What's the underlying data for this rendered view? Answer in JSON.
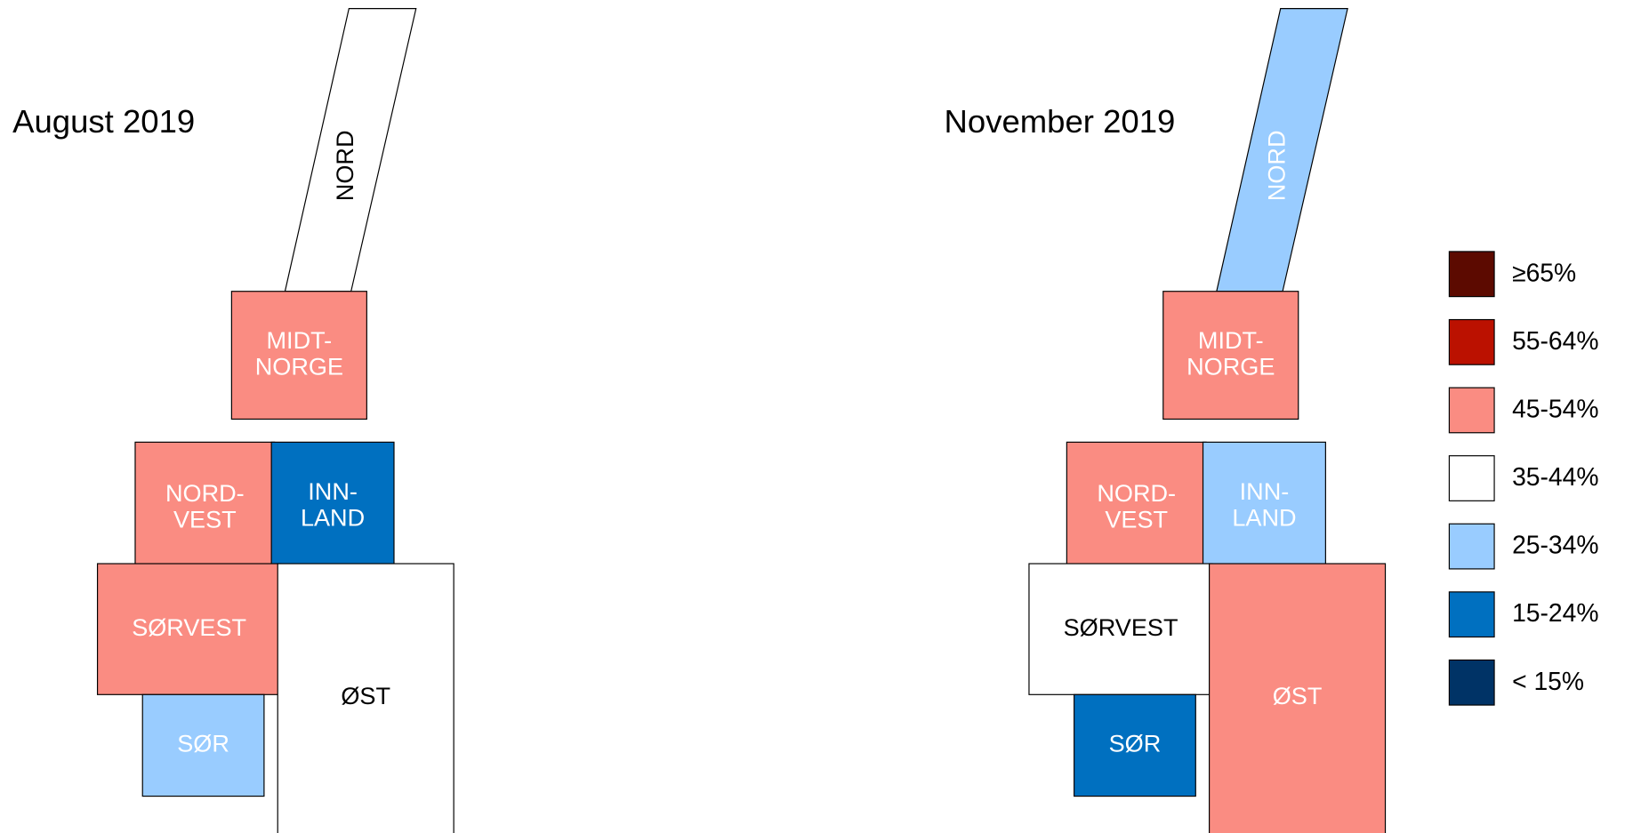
{
  "maps": [
    {
      "title": "August 2019",
      "regions": [
        {
          "lines": [
            "NORD"
          ],
          "color": "#ffffff",
          "text_color": "#000000"
        },
        {
          "lines": [
            "MIDT-",
            "NORGE"
          ],
          "color": "#fa8c82",
          "text_color": "#ffffff"
        },
        {
          "lines": [
            "NORD-",
            "VEST"
          ],
          "color": "#fa8c82",
          "text_color": "#ffffff"
        },
        {
          "lines": [
            "INN-",
            "LAND"
          ],
          "color": "#0070c0",
          "text_color": "#ffffff"
        },
        {
          "lines": [
            "SØRVEST"
          ],
          "color": "#fa8c82",
          "text_color": "#ffffff"
        },
        {
          "lines": [
            "ØST"
          ],
          "color": "#ffffff",
          "text_color": "#000000"
        },
        {
          "lines": [
            "SØR"
          ],
          "color": "#99ccff",
          "text_color": "#ffffff"
        }
      ]
    },
    {
      "title": "November 2019",
      "regions": [
        {
          "lines": [
            "NORD"
          ],
          "color": "#99ccff",
          "text_color": "#ffffff"
        },
        {
          "lines": [
            "MIDT-",
            "NORGE"
          ],
          "color": "#fa8c82",
          "text_color": "#ffffff"
        },
        {
          "lines": [
            "NORD-",
            "VEST"
          ],
          "color": "#fa8c82",
          "text_color": "#ffffff"
        },
        {
          "lines": [
            "INN-",
            "LAND"
          ],
          "color": "#99ccff",
          "text_color": "#ffffff"
        },
        {
          "lines": [
            "SØRVEST"
          ],
          "color": "#ffffff",
          "text_color": "#000000"
        },
        {
          "lines": [
            "ØST"
          ],
          "color": "#fa8c82",
          "text_color": "#ffffff"
        },
        {
          "lines": [
            "SØR"
          ],
          "color": "#0070c0",
          "text_color": "#ffffff"
        }
      ]
    }
  ],
  "legend": [
    {
      "label": "≥65%",
      "color": "#5c0a00"
    },
    {
      "label": "55-64%",
      "color": "#bb1100"
    },
    {
      "label": "45-54%",
      "color": "#fa8c82"
    },
    {
      "label": "35-44%",
      "color": "#ffffff"
    },
    {
      "label": "25-34%",
      "color": "#99ccff"
    },
    {
      "label": "15-24%",
      "color": "#0070c0"
    },
    {
      "label": "< 15%",
      "color": "#003366"
    }
  ]
}
